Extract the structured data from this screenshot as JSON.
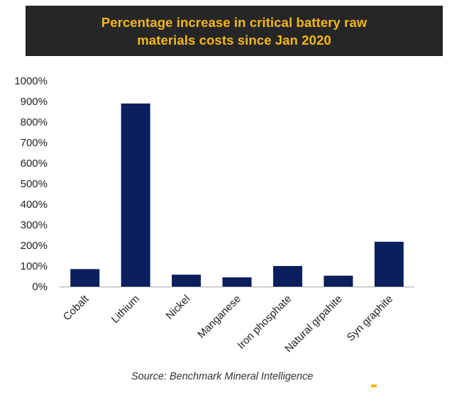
{
  "title": {
    "line1": "Percentage increase in critical battery raw",
    "line2": "materials costs since Jan 2020"
  },
  "source": "Source: Benchmark Mineral Intelligence",
  "colors": {
    "banner_bg": "#262626",
    "title_text": "#f6b712",
    "bar": "#0b1f5c"
  },
  "chart_data": {
    "type": "bar",
    "title": "Percentage increase in critical battery raw materials costs since Jan 2020",
    "categories": [
      "Cobalt",
      "Lithium",
      "Nickel",
      "Manganese",
      "Iron phosphate",
      "Natural grpahite",
      "Syn graphite"
    ],
    "values": [
      85,
      890,
      58,
      45,
      100,
      53,
      218
    ],
    "ylim": [
      0,
      1000
    ],
    "yticks": [
      0,
      100,
      200,
      300,
      400,
      500,
      600,
      700,
      800,
      900,
      1000
    ],
    "ytick_labels": [
      "0%",
      "100%",
      "200%",
      "300%",
      "400%",
      "500%",
      "600%",
      "700%",
      "800%",
      "900%",
      "1000%"
    ],
    "xlabel": "",
    "ylabel": "",
    "grid": false,
    "legend": "none"
  }
}
